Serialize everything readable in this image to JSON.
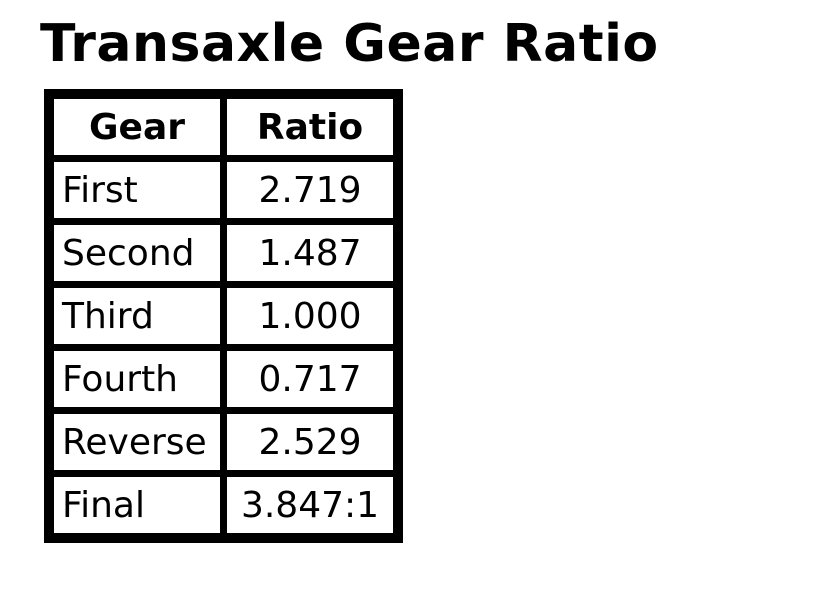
{
  "title": "Transaxle Gear Ratio",
  "table": {
    "columns": [
      "Gear",
      "Ratio"
    ],
    "rows": [
      {
        "gear": "First",
        "ratio": "2.719"
      },
      {
        "gear": "Second",
        "ratio": "1.487"
      },
      {
        "gear": "Third",
        "ratio": "1.000"
      },
      {
        "gear": "Fourth",
        "ratio": "0.717"
      },
      {
        "gear": "Reverse",
        "ratio": "2.529"
      },
      {
        "gear": "Final",
        "ratio": "3.847:1"
      }
    ]
  },
  "colors": {
    "foreground": "#000000",
    "background": "#ffffff"
  }
}
